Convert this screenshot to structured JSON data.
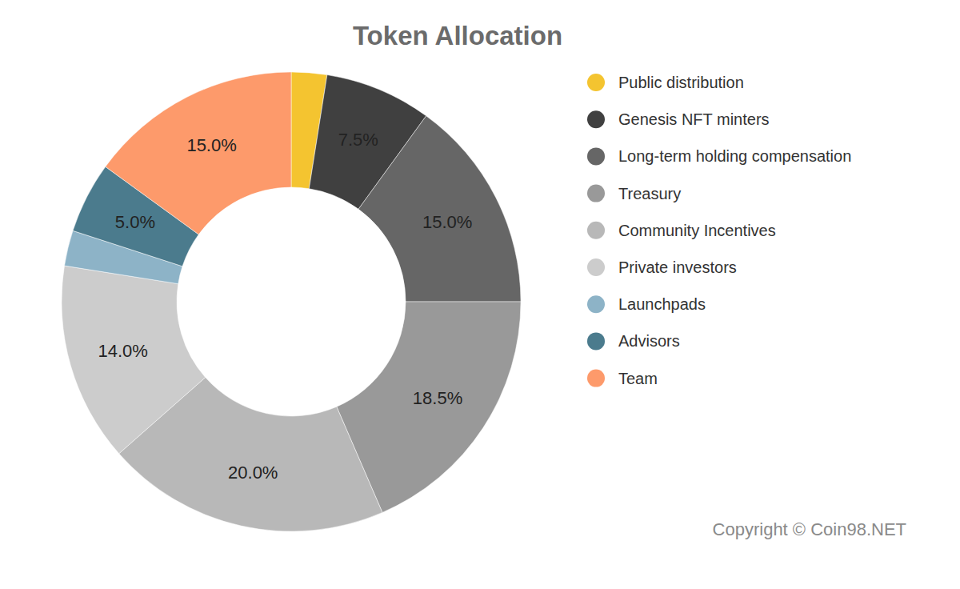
{
  "chart_data": {
    "type": "pie",
    "donut": true,
    "title": "Token Allocation",
    "categories": [
      "Public distribution",
      "Genesis NFT minters",
      "Long-term holding compensation",
      "Treasury",
      "Community Incentives",
      "Private investors",
      "Launchpads",
      "Advisors",
      "Team"
    ],
    "values": [
      2.5,
      7.5,
      15,
      18.5,
      20,
      14,
      2.5,
      5,
      15
    ],
    "value_labels": [
      null,
      "7.5%",
      "15.0%",
      "18.5%",
      "20.0%",
      "14.0%",
      null,
      "5.0%",
      "15.0%"
    ],
    "colors": [
      "#f4c430",
      "#404040",
      "#666666",
      "#999999",
      "#b8b8b8",
      "#cccccc",
      "#8db3c7",
      "#4b7b8d",
      "#fd9a6b"
    ],
    "data_labels": true,
    "legend": "right",
    "annotation": "Copyright © Coin98.NET"
  }
}
